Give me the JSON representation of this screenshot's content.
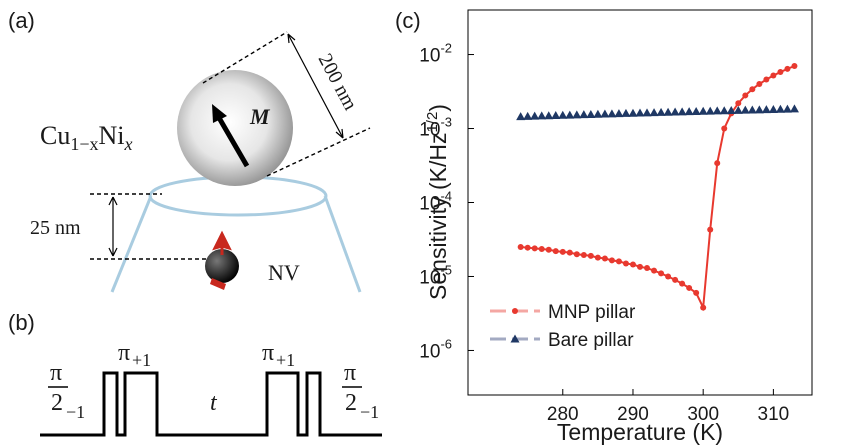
{
  "panel_a": {
    "label": "(a)",
    "material": {
      "base1": "Cu",
      "sub1": "1−x",
      "base2": "Ni",
      "sub2": "x"
    },
    "moment": "M",
    "diameter": "200 nm",
    "distance": "25 nm",
    "sensor": "NV"
  },
  "panel_b": {
    "label": "(b)",
    "pi": "π",
    "denominator": "2",
    "sub_half": "−1",
    "sub_full": "+1",
    "delay": "t"
  },
  "panel_c": {
    "label": "(c)"
  },
  "chart_data": {
    "type": "line",
    "x_label": "Temperature (K)",
    "y_label": {
      "text": "Sensitivity (K/Hz",
      "sup": "1/2",
      "end": ")"
    },
    "log_y": true,
    "legend": "lower left",
    "xlim": [
      266.5,
      315.5
    ],
    "ylim": [
      2.5e-07,
      0.04
    ],
    "xticks": [
      280,
      290,
      300,
      310
    ],
    "yticks": [
      {
        "value": 0.01,
        "label": "10",
        "exponent": "-2"
      },
      {
        "value": 0.001,
        "label": "10",
        "exponent": "-3"
      },
      {
        "value": 0.0001,
        "label": "10",
        "exponent": "-4"
      },
      {
        "value": 1e-05,
        "label": "10",
        "exponent": "-5"
      },
      {
        "value": 1e-06,
        "label": "10",
        "exponent": "-6"
      }
    ],
    "x": [
      274,
      275,
      276,
      277,
      278,
      279,
      280,
      281,
      282,
      283,
      284,
      285,
      286,
      287,
      288,
      289,
      290,
      291,
      292,
      293,
      294,
      295,
      296,
      297,
      298,
      299,
      300,
      301,
      302,
      303,
      304,
      305,
      306,
      307,
      308,
      309,
      310,
      311,
      312,
      313
    ],
    "series": [
      {
        "name": "MNP pillar",
        "color": "#e8392f",
        "legend_color": "#f4a7a3",
        "marker": "circle",
        "line": true,
        "values": [
          2.5e-05,
          2.45e-05,
          2.4e-05,
          2.35e-05,
          2.3e-05,
          2.2e-05,
          2.15e-05,
          2.1e-05,
          2e-05,
          1.95e-05,
          1.9e-05,
          1.8e-05,
          1.75e-05,
          1.65e-05,
          1.6e-05,
          1.5e-05,
          1.45e-05,
          1.35e-05,
          1.3e-05,
          1.2e-05,
          1.1e-05,
          1e-05,
          9e-06,
          8e-06,
          7e-06,
          6e-06,
          3.8e-06,
          4.3e-05,
          0.00034,
          0.001,
          0.0016,
          0.0022,
          0.0028,
          0.0034,
          0.004,
          0.0046,
          0.0052,
          0.0058,
          0.0064,
          0.007
        ]
      },
      {
        "name": "Bare pillar",
        "color": "#1f3864",
        "legend_color": "#a3aac2",
        "marker": "triangle",
        "line": false,
        "values": [
          0.00145,
          0.00146,
          0.00147,
          0.00148,
          0.00149,
          0.0015,
          0.00151,
          0.00152,
          0.00153,
          0.00154,
          0.00155,
          0.00156,
          0.00157,
          0.00158,
          0.00159,
          0.0016,
          0.00161,
          0.00162,
          0.00163,
          0.00164,
          0.00165,
          0.00166,
          0.00167,
          0.00168,
          0.00169,
          0.0017,
          0.00171,
          0.00172,
          0.00173,
          0.00174,
          0.00175,
          0.00176,
          0.00177,
          0.00178,
          0.00179,
          0.0018,
          0.00181,
          0.00182,
          0.00183,
          0.00184
        ]
      }
    ]
  }
}
